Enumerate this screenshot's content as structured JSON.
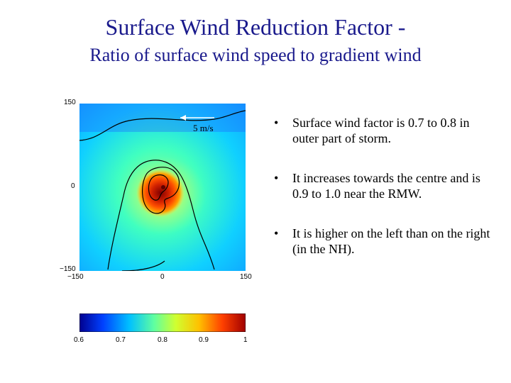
{
  "title": "Surface Wind Reduction Factor -",
  "subtitle": "Ratio of surface wind speed to gradient wind",
  "map": {
    "y_ticks": [
      "150",
      "0",
      "−150"
    ],
    "x_ticks": [
      "−150",
      "0",
      "150"
    ],
    "scale_arrow_label": "5 m/s"
  },
  "colorbar": {
    "ticks": [
      "0.6",
      "0.7",
      "0.8",
      "0.9",
      "1"
    ],
    "colors": [
      "#00008f",
      "#0040ff",
      "#00c0ff",
      "#60ffa0",
      "#d0ff30",
      "#ffc000",
      "#ff4000",
      "#a00000"
    ]
  },
  "bullets": [
    {
      "marker": "•",
      "text": "Surface wind factor is 0.7 to 0.8 in outer part of storm."
    },
    {
      "marker": "•",
      "text": "It increases towards the centre and is 0.9 to 1.0 near the RMW."
    },
    {
      "marker": "•",
      "text": "It is higher on the left than on the right (in the NH)."
    }
  ]
}
